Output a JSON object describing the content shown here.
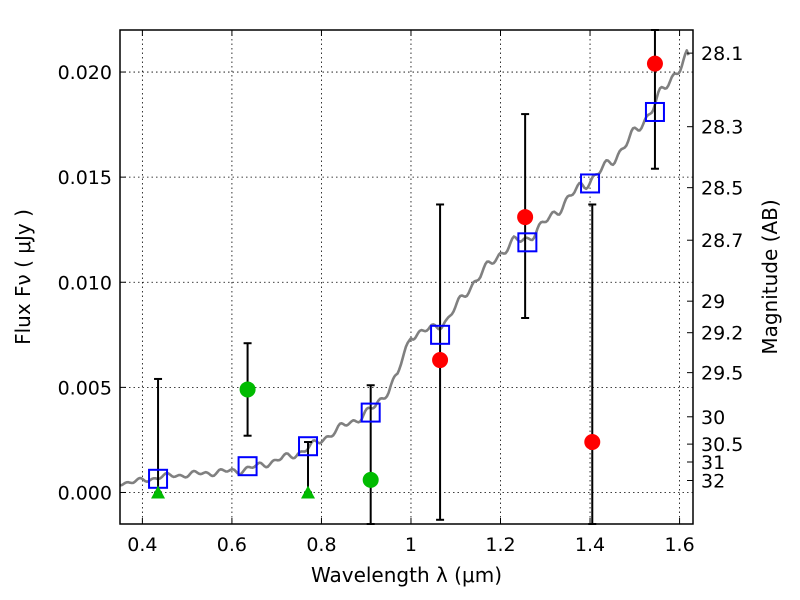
{
  "chart_data": {
    "type": "scatter",
    "xlabel": "Wavelength  λ (μm)",
    "ylabel": "Flux  Fν  ( μJy )",
    "ylabel_right": "Magnitude (AB)",
    "xlim": [
      0.35,
      1.63
    ],
    "ylim": [
      -0.0015,
      0.022
    ],
    "grid": true,
    "x_ticks": [
      {
        "value": 0.4,
        "label": "0.4"
      },
      {
        "value": 0.6,
        "label": "0.6"
      },
      {
        "value": 0.8,
        "label": "0.8"
      },
      {
        "value": 1.0,
        "label": "1"
      },
      {
        "value": 1.2,
        "label": "1.2"
      },
      {
        "value": 1.4,
        "label": "1.4"
      },
      {
        "value": 1.6,
        "label": "1.6"
      }
    ],
    "y_ticks": [
      {
        "value": 0.0,
        "label": "0.000"
      },
      {
        "value": 0.005,
        "label": "0.005"
      },
      {
        "value": 0.01,
        "label": "0.010"
      },
      {
        "value": 0.015,
        "label": "0.015"
      },
      {
        "value": 0.02,
        "label": "0.020"
      }
    ],
    "right_ticks": [
      {
        "label": "28.1",
        "flux": 0.0209
      },
      {
        "label": "28.3",
        "flux": 0.0174
      },
      {
        "label": "28.5",
        "flux": 0.0145
      },
      {
        "label": "28.7",
        "flux": 0.012
      },
      {
        "label": "29",
        "flux": 0.0091
      },
      {
        "label": "29.2",
        "flux": 0.0076
      },
      {
        "label": "29.5",
        "flux": 0.0057
      },
      {
        "label": "30",
        "flux": 0.0036
      },
      {
        "label": "30.5",
        "flux": 0.0023
      },
      {
        "label": "31",
        "flux": 0.00145
      },
      {
        "label": "32",
        "flux": 0.00057
      }
    ],
    "model_spectrum": {
      "color": "#808080",
      "points": [
        [
          0.35,
          0.00045
        ],
        [
          0.38,
          0.0005
        ],
        [
          0.41,
          0.0006
        ],
        [
          0.44,
          0.00075
        ],
        [
          0.47,
          0.0008
        ],
        [
          0.5,
          0.00085
        ],
        [
          0.53,
          0.0009
        ],
        [
          0.56,
          0.00095
        ],
        [
          0.59,
          0.001
        ],
        [
          0.62,
          0.00105
        ],
        [
          0.65,
          0.0012
        ],
        [
          0.68,
          0.0014
        ],
        [
          0.71,
          0.0016
        ],
        [
          0.74,
          0.0018
        ],
        [
          0.77,
          0.0021
        ],
        [
          0.8,
          0.0025
        ],
        [
          0.83,
          0.0029
        ],
        [
          0.86,
          0.0033
        ],
        [
          0.89,
          0.0036
        ],
        [
          0.92,
          0.0041
        ],
        [
          0.95,
          0.0049
        ],
        [
          0.97,
          0.0056
        ],
        [
          1.0,
          0.0075
        ],
        [
          1.02,
          0.0076
        ],
        [
          1.05,
          0.0078
        ],
        [
          1.08,
          0.0082
        ],
        [
          1.11,
          0.0091
        ],
        [
          1.14,
          0.01
        ],
        [
          1.17,
          0.0107
        ],
        [
          1.2,
          0.0114
        ],
        [
          1.23,
          0.0119
        ],
        [
          1.26,
          0.0121
        ],
        [
          1.29,
          0.0126
        ],
        [
          1.32,
          0.0133
        ],
        [
          1.35,
          0.0139
        ],
        [
          1.38,
          0.0146
        ],
        [
          1.41,
          0.015
        ],
        [
          1.44,
          0.0156
        ],
        [
          1.47,
          0.0163
        ],
        [
          1.5,
          0.0171
        ],
        [
          1.53,
          0.018
        ],
        [
          1.56,
          0.019
        ],
        [
          1.59,
          0.02
        ],
        [
          1.62,
          0.0208
        ]
      ]
    },
    "series": [
      {
        "marker": "square-open",
        "color": "#0000ff",
        "points": [
          {
            "x": 0.435,
            "y": 0.00065
          },
          {
            "x": 0.635,
            "y": 0.00125
          },
          {
            "x": 0.77,
            "y": 0.0022
          },
          {
            "x": 0.91,
            "y": 0.0038
          },
          {
            "x": 1.065,
            "y": 0.0075
          },
          {
            "x": 1.26,
            "y": 0.0119
          },
          {
            "x": 1.4,
            "y": 0.0147
          },
          {
            "x": 1.545,
            "y": 0.0181
          }
        ]
      },
      {
        "marker": "circle",
        "color": "#00bb00",
        "points": [
          {
            "x": 0.635,
            "y": 0.0049,
            "err_low": 0.0027,
            "err_high": 0.0071
          },
          {
            "x": 0.91,
            "y": 0.0006,
            "err_low": -0.0015,
            "err_high": 0.0051
          }
        ]
      },
      {
        "marker": "triangle",
        "color": "#00bb00",
        "points": [
          {
            "x": 0.435,
            "y": 0.0,
            "err_low": 0.0,
            "err_high": 0.0054
          },
          {
            "x": 0.77,
            "y": 0.0,
            "err_low": 0.0,
            "err_high": 0.0024
          }
        ]
      },
      {
        "marker": "circle",
        "color": "#ff0000",
        "points": [
          {
            "x": 1.065,
            "y": 0.0063,
            "err_low": -0.0013,
            "err_high": 0.0137
          },
          {
            "x": 1.255,
            "y": 0.0131,
            "err_low": 0.0083,
            "err_high": 0.018
          },
          {
            "x": 1.405,
            "y": 0.0024,
            "err_low": -0.0015,
            "err_high": 0.0137
          },
          {
            "x": 1.545,
            "y": 0.0204,
            "err_low": 0.0154,
            "err_high": 0.022
          }
        ]
      }
    ]
  }
}
